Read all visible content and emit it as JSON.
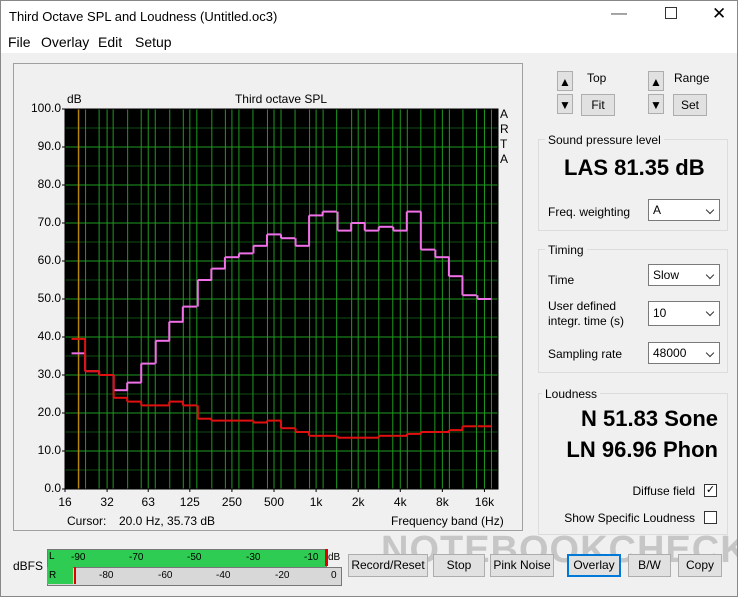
{
  "window": {
    "title": "Third Octave SPL and Loudness (Untitled.oc3)"
  },
  "menu": [
    "File",
    "Overlay",
    "Edit",
    "Setup"
  ],
  "chart_data": {
    "type": "line",
    "title": "Third octave SPL",
    "y_label": "dB",
    "x_label": "Frequency band (Hz)",
    "side_label": "ARTA",
    "xscale": "log",
    "xlim": [
      16,
      20000
    ],
    "ylim": [
      0,
      100
    ],
    "xticks": [
      16,
      32,
      63,
      125,
      250,
      500,
      {
        "value": 1000,
        "label": "1k"
      },
      {
        "value": 2000,
        "label": "2k"
      },
      {
        "value": 4000,
        "label": "4k"
      },
      {
        "value": 8000,
        "label": "8k"
      },
      {
        "value": 16000,
        "label": "16k"
      }
    ],
    "yticks": [
      {
        "value": 0,
        "label": "0.0"
      },
      {
        "value": 10,
        "label": "10.0"
      },
      {
        "value": 20,
        "label": "20.0"
      },
      {
        "value": 30,
        "label": "30.0"
      },
      {
        "value": 40,
        "label": "40.0"
      },
      {
        "value": 50,
        "label": "50.0"
      },
      {
        "value": 60,
        "label": "60.0"
      },
      {
        "value": 70,
        "label": "70.0"
      },
      {
        "value": 80,
        "label": "80.0"
      },
      {
        "value": 90,
        "label": "90.0"
      },
      {
        "value": 100,
        "label": "100.0"
      }
    ],
    "grid": true,
    "background": "#000000",
    "grid_color": "#1f9a1f",
    "cursor_color": "#b8860b",
    "x": [
      20,
      25,
      31.5,
      40,
      50,
      63,
      80,
      100,
      125,
      160,
      200,
      250,
      315,
      400,
      500,
      630,
      800,
      1000,
      1250,
      1600,
      2000,
      2500,
      3150,
      4000,
      5000,
      6300,
      8000,
      10000,
      12500,
      16000
    ],
    "series": [
      {
        "color": "#f070e8",
        "values": [
          35.7,
          31,
          30,
          26,
          28,
          33,
          39,
          44,
          48,
          55,
          58,
          61,
          62,
          64,
          67,
          66,
          64,
          72,
          73,
          68,
          70,
          68,
          69,
          68,
          73,
          63,
          61,
          56,
          51,
          50
        ]
      },
      {
        "color": "#e01010",
        "values": [
          39.5,
          31,
          30,
          24,
          23,
          22,
          22,
          23,
          22,
          18.5,
          18,
          18,
          18,
          17.5,
          18,
          16,
          15,
          14,
          14,
          13.5,
          13.5,
          13.5,
          14,
          14,
          14.5,
          15,
          15,
          15.5,
          16.5,
          16.5
        ]
      }
    ]
  },
  "cursor": {
    "label": "Cursor:",
    "value": "20.0 Hz, 35.73 dB"
  },
  "controls": {
    "top": "Top",
    "fit": "Fit",
    "range": "Range",
    "set": "Set"
  },
  "spl": {
    "group": "Sound pressure level",
    "reading": "LAS 81.35 dB",
    "weighting_label": "Freq. weighting",
    "weighting": "A"
  },
  "timing": {
    "group": "Timing",
    "time_label": "Time",
    "time": "Slow",
    "integr_label": "User defined integr. time (s)",
    "integr": "10",
    "rate_label": "Sampling rate",
    "rate": "48000"
  },
  "loudness": {
    "group": "Loudness",
    "n": "N 51.83 Sone",
    "ln": "LN 96.96 Phon",
    "diffuse": "Diffuse field",
    "specific": "Show Specific Loudness"
  },
  "meter": {
    "label": "dBFS",
    "top_scale": [
      "-90",
      "-70",
      "-50",
      "-30",
      "-10"
    ],
    "unit": "dB",
    "channels": [
      "L",
      "R"
    ],
    "bottom_scale": [
      "-80",
      "-60",
      "-40",
      "-20",
      "0"
    ]
  },
  "buttons": [
    "Record/Reset",
    "Stop",
    "Pink Noise",
    "Overlay",
    "B/W",
    "Copy"
  ],
  "watermark": "NOTEBOOKCHECK"
}
